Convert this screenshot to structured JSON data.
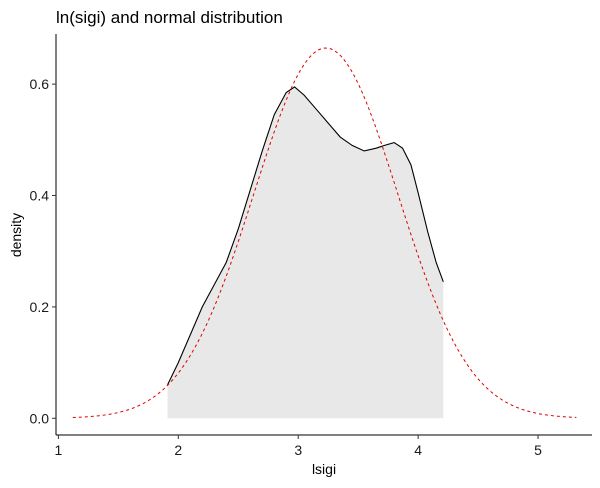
{
  "chart_data": {
    "type": "area",
    "title": "ln(sigi) and normal distribution",
    "xlabel": "lsigi",
    "ylabel": "density",
    "xlim": [
      0.98,
      5.45
    ],
    "ylim": [
      -0.03,
      0.69
    ],
    "x_ticks": [
      1,
      2,
      3,
      4,
      5
    ],
    "y_ticks": [
      0.0,
      0.2,
      0.4,
      0.6
    ],
    "y_tick_labels": [
      "0.0",
      "0.2",
      "0.4",
      "0.6"
    ],
    "grid": false,
    "legend": "none",
    "series": [
      {
        "kind": "kernel-density",
        "fill": "#e8e8e8",
        "line_color": "#000000",
        "line_style": "solid",
        "x": [
          1.91,
          2.0,
          2.1,
          2.2,
          2.3,
          2.4,
          2.5,
          2.6,
          2.7,
          2.8,
          2.9,
          2.97,
          3.05,
          3.15,
          3.25,
          3.35,
          3.45,
          3.55,
          3.65,
          3.72,
          3.8,
          3.87,
          3.94,
          4.0,
          4.08,
          4.15,
          4.21
        ],
        "y": [
          0.06,
          0.1,
          0.15,
          0.2,
          0.24,
          0.28,
          0.34,
          0.41,
          0.48,
          0.545,
          0.585,
          0.595,
          0.58,
          0.555,
          0.53,
          0.505,
          0.49,
          0.48,
          0.485,
          0.49,
          0.495,
          0.485,
          0.455,
          0.405,
          0.335,
          0.28,
          0.245
        ]
      },
      {
        "kind": "normal",
        "line_color": "#e00000",
        "line_style": "dashed",
        "mean": 3.23,
        "sd": 0.6,
        "x_range": [
          1.12,
          5.32
        ]
      }
    ]
  }
}
